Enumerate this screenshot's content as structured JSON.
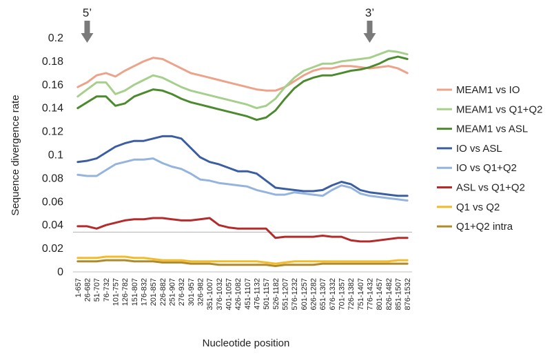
{
  "chart_data": {
    "type": "line",
    "xlabel": "Nucleotide position",
    "ylabel": "Sequence divergence rate",
    "ylim": [
      0,
      0.2
    ],
    "yticks": [
      "0",
      "0.02",
      "0.04",
      "0.06",
      "0.08",
      "0.1",
      "0.12",
      "0.14",
      "0.16",
      "0.18",
      "0.2"
    ],
    "grid": false,
    "legend_position": "right",
    "reference_line": {
      "y": 0.034,
      "color": "#b0b0b0"
    },
    "markers": [
      {
        "label": "5’",
        "x_index": 1
      },
      {
        "label": "3’",
        "x_index": 31
      }
    ],
    "categories": [
      "1-657",
      "26-682",
      "51-707",
      "76-732",
      "101-757",
      "126-782",
      "151-807",
      "176-832",
      "201-857",
      "226-882",
      "251-907",
      "276-932",
      "301-957",
      "326-982",
      "351-1007",
      "376-1032",
      "401-1057",
      "426-1082",
      "451-1107",
      "476-1132",
      "501-1157",
      "526-1182",
      "551-1207",
      "576-1232",
      "601-1257",
      "626-1282",
      "651-1307",
      "676-1332",
      "701-1357",
      "726-1382",
      "751-1407",
      "776-1432",
      "801-1457",
      "826-1482",
      "851-1507",
      "876-1532"
    ],
    "series": [
      {
        "name": "MEAM1 vs IO",
        "color": "#eda28a",
        "values": [
          0.158,
          0.162,
          0.168,
          0.17,
          0.167,
          0.172,
          0.176,
          0.18,
          0.183,
          0.182,
          0.178,
          0.174,
          0.17,
          0.168,
          0.166,
          0.164,
          0.162,
          0.16,
          0.158,
          0.156,
          0.155,
          0.155,
          0.158,
          0.163,
          0.168,
          0.172,
          0.174,
          0.174,
          0.176,
          0.176,
          0.175,
          0.174,
          0.175,
          0.176,
          0.174,
          0.17
        ]
      },
      {
        "name": "MEAM1 vs Q1+Q2",
        "color": "#a6cf8c",
        "values": [
          0.15,
          0.156,
          0.162,
          0.162,
          0.152,
          0.155,
          0.16,
          0.164,
          0.168,
          0.166,
          0.162,
          0.158,
          0.155,
          0.153,
          0.151,
          0.149,
          0.147,
          0.145,
          0.143,
          0.14,
          0.142,
          0.148,
          0.158,
          0.166,
          0.172,
          0.175,
          0.178,
          0.178,
          0.18,
          0.181,
          0.182,
          0.183,
          0.186,
          0.189,
          0.188,
          0.186
        ]
      },
      {
        "name": "MEAM1 vs ASL",
        "color": "#4c8a2e",
        "values": [
          0.14,
          0.145,
          0.15,
          0.15,
          0.142,
          0.144,
          0.15,
          0.153,
          0.156,
          0.155,
          0.152,
          0.148,
          0.145,
          0.143,
          0.141,
          0.139,
          0.137,
          0.135,
          0.133,
          0.13,
          0.132,
          0.138,
          0.148,
          0.157,
          0.163,
          0.166,
          0.168,
          0.168,
          0.17,
          0.172,
          0.173,
          0.175,
          0.178,
          0.182,
          0.184,
          0.182
        ]
      },
      {
        "name": "IO vs ASL",
        "color": "#3b5ea3",
        "values": [
          0.094,
          0.095,
          0.097,
          0.102,
          0.107,
          0.11,
          0.112,
          0.112,
          0.114,
          0.116,
          0.116,
          0.114,
          0.106,
          0.098,
          0.094,
          0.092,
          0.089,
          0.086,
          0.086,
          0.084,
          0.078,
          0.072,
          0.071,
          0.07,
          0.069,
          0.069,
          0.07,
          0.074,
          0.077,
          0.075,
          0.07,
          0.068,
          0.067,
          0.066,
          0.065,
          0.065
        ]
      },
      {
        "name": "IO vs Q1+Q2",
        "color": "#94b4de",
        "values": [
          0.083,
          0.082,
          0.082,
          0.087,
          0.092,
          0.094,
          0.096,
          0.096,
          0.097,
          0.093,
          0.09,
          0.088,
          0.084,
          0.079,
          0.078,
          0.076,
          0.075,
          0.074,
          0.073,
          0.07,
          0.068,
          0.066,
          0.066,
          0.068,
          0.067,
          0.066,
          0.065,
          0.07,
          0.074,
          0.072,
          0.067,
          0.065,
          0.064,
          0.063,
          0.062,
          0.061
        ]
      },
      {
        "name": "ASL vs Q1+Q2",
        "color": "#b52a2a",
        "values": [
          0.039,
          0.039,
          0.037,
          0.04,
          0.042,
          0.044,
          0.045,
          0.045,
          0.046,
          0.046,
          0.045,
          0.044,
          0.044,
          0.045,
          0.046,
          0.04,
          0.038,
          0.037,
          0.037,
          0.037,
          0.037,
          0.029,
          0.03,
          0.03,
          0.03,
          0.03,
          0.031,
          0.03,
          0.03,
          0.027,
          0.026,
          0.026,
          0.027,
          0.028,
          0.029,
          0.029
        ]
      },
      {
        "name": "Q1 vs Q2",
        "color": "#f3bb2a",
        "values": [
          0.012,
          0.012,
          0.012,
          0.013,
          0.013,
          0.013,
          0.012,
          0.012,
          0.011,
          0.01,
          0.01,
          0.01,
          0.009,
          0.009,
          0.009,
          0.009,
          0.009,
          0.009,
          0.009,
          0.009,
          0.008,
          0.007,
          0.008,
          0.009,
          0.009,
          0.009,
          0.009,
          0.009,
          0.009,
          0.009,
          0.009,
          0.009,
          0.009,
          0.009,
          0.01,
          0.01
        ]
      },
      {
        "name": "Q1+Q2 intra",
        "color": "#b08a2a",
        "values": [
          0.009,
          0.009,
          0.009,
          0.01,
          0.01,
          0.01,
          0.009,
          0.009,
          0.009,
          0.008,
          0.008,
          0.008,
          0.007,
          0.007,
          0.007,
          0.006,
          0.006,
          0.006,
          0.006,
          0.006,
          0.006,
          0.005,
          0.006,
          0.006,
          0.006,
          0.006,
          0.007,
          0.007,
          0.007,
          0.007,
          0.007,
          0.007,
          0.007,
          0.007,
          0.007,
          0.007
        ]
      }
    ]
  }
}
